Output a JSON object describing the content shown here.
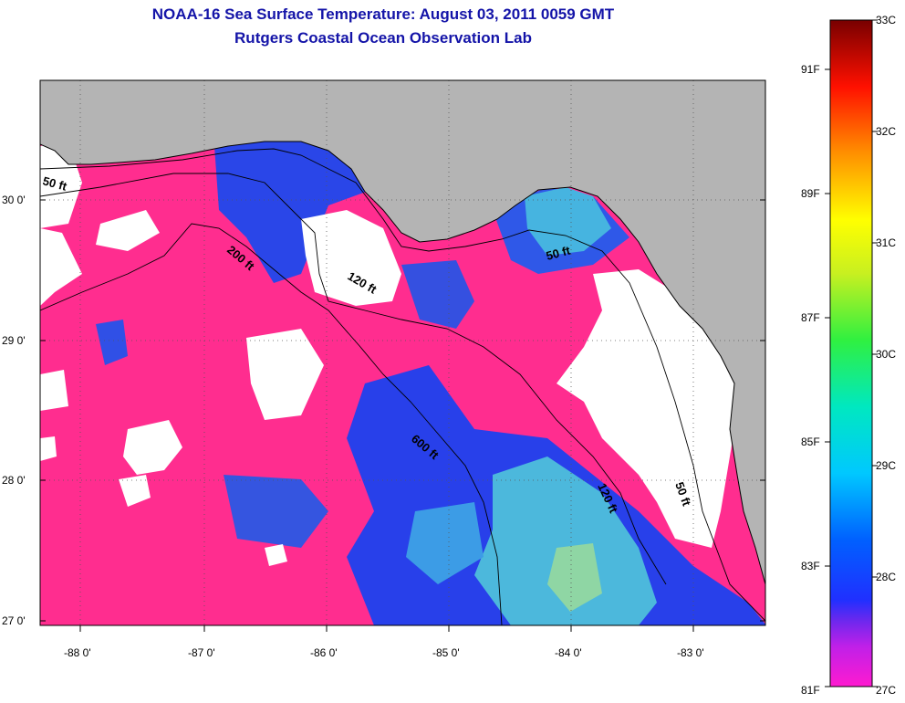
{
  "title": "NOAA-16 Sea Surface Temperature:  August 03, 2011 0059 GMT",
  "subtitle": "Rutgers Coastal Ocean Observation Lab",
  "map": {
    "lat_labels": [
      "30 0'",
      "29 0'",
      "28 0'",
      "27 0'"
    ],
    "lon_labels": [
      "-88 0'",
      "-87 0'",
      "-86 0'",
      "-85 0'",
      "-84 0'",
      "-83 0'"
    ],
    "isobath_labels": [
      "50 ft",
      "200 ft",
      "120 ft",
      "50 ft",
      "600 ft",
      "120 ft",
      "50 ft"
    ],
    "colors": {
      "land": "#b4b4b4",
      "cloud": "#ffffff",
      "warm": "#ff2d8f",
      "cool": "#1f3fe6",
      "teal": "#3ec8e0"
    }
  },
  "colorbar": {
    "celsius": [
      "33C",
      "32C",
      "31C",
      "30C",
      "29C",
      "28C",
      "27C"
    ],
    "fahrenheit": [
      "91F",
      "89F",
      "87F",
      "85F",
      "83F",
      "81F"
    ]
  }
}
